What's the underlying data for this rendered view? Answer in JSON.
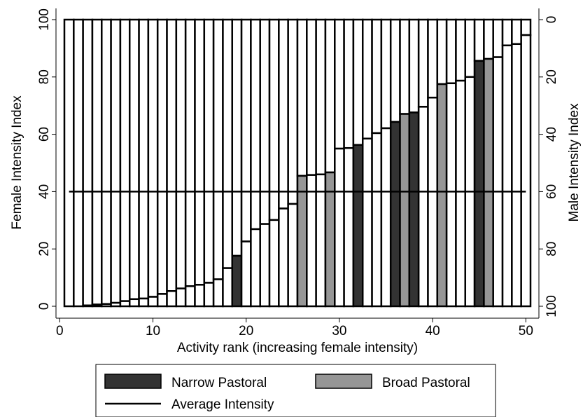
{
  "chart_data": {
    "type": "bar",
    "title": "",
    "xlabel": "Activity rank (increasing female intensity)",
    "ylabel_left": "Female Intensity Index",
    "ylabel_right": "Male Intensity Index",
    "xlim": [
      0.5,
      50.5
    ],
    "ylim": [
      0,
      100
    ],
    "x_ticks": [
      0,
      10,
      20,
      30,
      40,
      50
    ],
    "y_ticks_left": [
      0,
      20,
      40,
      60,
      80,
      100
    ],
    "y_ticks_right": [
      0,
      20,
      40,
      60,
      80,
      100
    ],
    "ranks": [
      1,
      2,
      3,
      4,
      5,
      6,
      7,
      8,
      9,
      10,
      11,
      12,
      13,
      14,
      15,
      16,
      17,
      18,
      19,
      20,
      21,
      22,
      23,
      24,
      25,
      26,
      27,
      28,
      29,
      30,
      31,
      32,
      33,
      34,
      35,
      36,
      37,
      38,
      39,
      40,
      41,
      42,
      43,
      44,
      45,
      46,
      47,
      48,
      49,
      50
    ],
    "female_intensity": [
      0,
      0,
      0.3,
      0.6,
      0.8,
      1.2,
      1.8,
      2.5,
      2.7,
      3.3,
      4.3,
      5.3,
      6.2,
      7.0,
      7.5,
      8.2,
      9.4,
      13.3,
      17.6,
      22.6,
      26.9,
      28.7,
      30.1,
      34.1,
      35.7,
      45.5,
      45.8,
      46.0,
      46.7,
      55.0,
      55.2,
      56.3,
      58.5,
      60.4,
      62.1,
      64.3,
      67.1,
      67.6,
      69.6,
      72.8,
      77.5,
      77.8,
      78.7,
      80.0,
      85.6,
      86.3,
      86.9,
      91.0,
      91.5,
      94.6
    ],
    "pastoral_class": [
      "none",
      "none",
      "none",
      "none",
      "none",
      "none",
      "none",
      "none",
      "none",
      "none",
      "none",
      "none",
      "none",
      "none",
      "none",
      "none",
      "none",
      "none",
      "narrow",
      "none",
      "none",
      "none",
      "none",
      "none",
      "none",
      "broad",
      "none",
      "none",
      "broad",
      "none",
      "none",
      "narrow",
      "none",
      "none",
      "none",
      "narrow",
      "broad",
      "narrow",
      "none",
      "none",
      "broad",
      "none",
      "none",
      "none",
      "narrow",
      "broad",
      "none",
      "none",
      "none",
      "none"
    ],
    "average_intensity": 40,
    "average_range": [
      1,
      50
    ],
    "legend": {
      "placement": "bottom",
      "items": [
        {
          "label": "Narrow Pastoral",
          "kind": "bar",
          "color": "#333333"
        },
        {
          "label": "Broad Pastoral",
          "kind": "bar",
          "color": "#969696"
        },
        {
          "label": "Average Intensity",
          "kind": "line",
          "color": "#000000"
        }
      ]
    },
    "colors": {
      "narrow": "#333333",
      "broad": "#969696",
      "none": "#ffffff",
      "outline": "#000000"
    }
  }
}
